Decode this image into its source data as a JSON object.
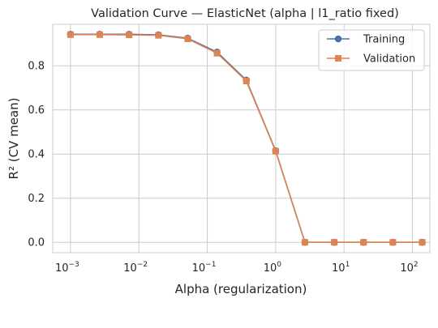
{
  "chart_data": {
    "type": "line",
    "title": "Validation Curve — ElasticNet (alpha | l1_ratio fixed)",
    "xlabel": "Alpha (regularization)",
    "ylabel": "R² (CV mean)",
    "xscale": "log",
    "xlim": [
      0.00055,
      180
    ],
    "ylim": [
      -0.047,
      0.988
    ],
    "x_ticks": [
      {
        "value": 0.001,
        "base": "10",
        "exp": "−3"
      },
      {
        "value": 0.01,
        "base": "10",
        "exp": "−2"
      },
      {
        "value": 0.1,
        "base": "10",
        "exp": "−1"
      },
      {
        "value": 1,
        "base": "10",
        "exp": "0"
      },
      {
        "value": 10,
        "base": "10",
        "exp": "1"
      },
      {
        "value": 100,
        "base": "10",
        "exp": "2"
      }
    ],
    "y_ticks": [
      {
        "value": 0.0,
        "label": "0.0"
      },
      {
        "value": 0.2,
        "label": "0.2"
      },
      {
        "value": 0.4,
        "label": "0.4"
      },
      {
        "value": 0.6,
        "label": "0.6"
      },
      {
        "value": 0.8,
        "label": "0.8"
      }
    ],
    "grid": true,
    "legend_position": "top-right",
    "x": [
      0.001,
      0.00268,
      0.0072,
      0.0193,
      0.0518,
      0.139,
      0.373,
      1.0,
      2.68,
      7.2,
      19.3,
      51.8,
      139
    ],
    "series": [
      {
        "name": "Training",
        "color": "#4c72b0",
        "marker": "circle",
        "values": [
          0.943,
          0.943,
          0.943,
          0.94,
          0.925,
          0.862,
          0.735,
          0.415,
          0.0,
          0.0,
          0.0,
          0.0,
          0.0
        ]
      },
      {
        "name": "Validation",
        "color": "#dd8452",
        "marker": "square",
        "values": [
          0.941,
          0.941,
          0.94,
          0.938,
          0.922,
          0.857,
          0.731,
          0.413,
          0.0,
          0.0,
          0.0,
          0.0,
          0.0
        ]
      }
    ]
  }
}
